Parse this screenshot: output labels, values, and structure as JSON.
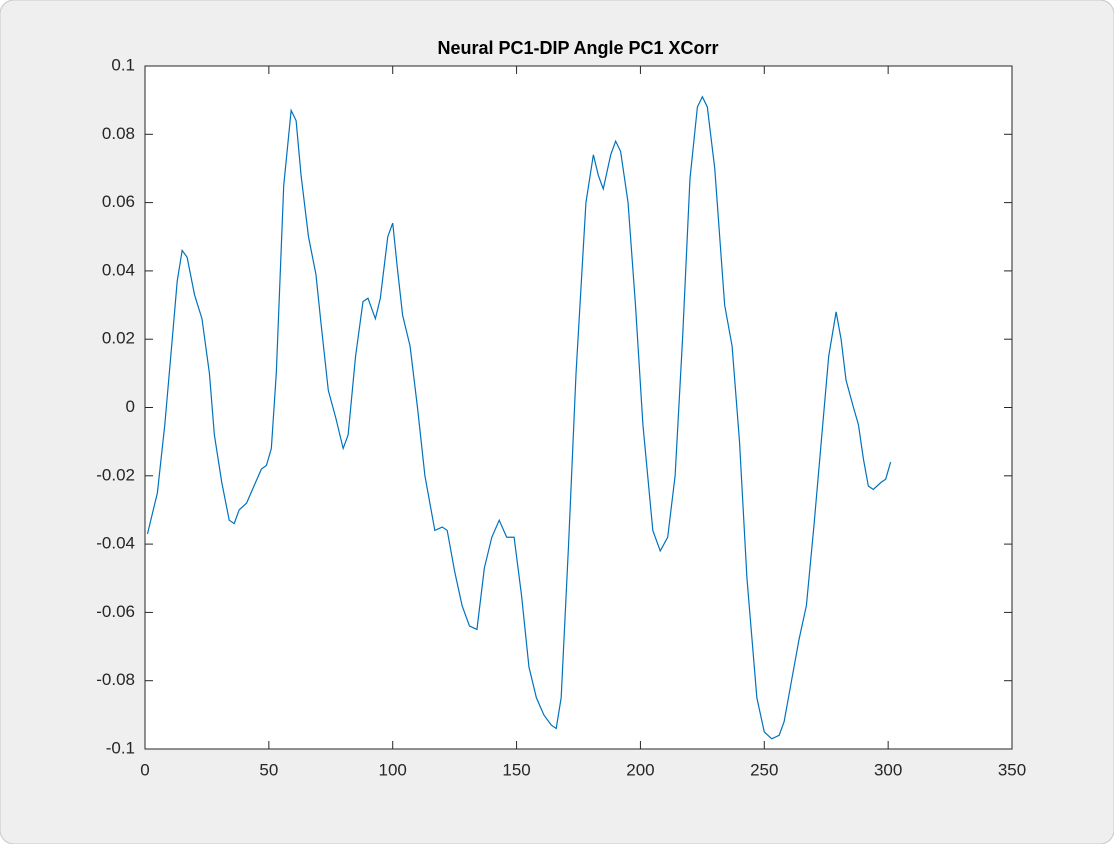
{
  "chart_data": {
    "type": "line",
    "title": "Neural PC1-DIP Angle PC1 XCorr",
    "x": [
      1,
      5,
      8,
      11,
      13,
      15,
      17,
      20,
      23,
      26,
      28,
      31,
      34,
      36,
      38,
      41,
      44,
      47,
      49,
      51,
      53,
      56,
      59,
      61,
      63,
      66,
      69,
      71,
      74,
      77,
      80,
      82,
      85,
      88,
      90,
      93,
      95,
      98,
      100,
      102,
      104,
      107,
      110,
      113,
      117,
      120,
      122,
      125,
      128,
      131,
      134,
      137,
      140,
      143,
      146,
      149,
      152,
      155,
      158,
      161,
      164,
      166,
      168,
      171,
      174,
      178,
      181,
      183,
      185,
      188,
      190,
      192,
      195,
      198,
      201,
      205,
      208,
      211,
      214,
      217,
      220,
      223,
      225,
      227,
      230,
      234,
      237,
      240,
      243,
      247,
      250,
      253,
      256,
      258,
      261,
      264,
      267,
      270,
      273,
      276,
      279,
      281,
      283,
      286,
      288,
      290,
      292,
      294,
      297,
      299,
      301
    ],
    "series": [
      {
        "color": "#0072bd",
        "values": [
          -0.037,
          -0.025,
          -0.005,
          0.02,
          0.037,
          0.046,
          0.044,
          0.033,
          0.026,
          0.01,
          -0.008,
          -0.022,
          -0.033,
          -0.034,
          -0.03,
          -0.028,
          -0.023,
          -0.018,
          -0.017,
          -0.012,
          0.01,
          0.065,
          0.087,
          0.084,
          0.068,
          0.05,
          0.039,
          0.025,
          0.005,
          -0.003,
          -0.012,
          -0.008,
          0.015,
          0.031,
          0.032,
          0.026,
          0.032,
          0.05,
          0.054,
          0.04,
          0.027,
          0.018,
          0.0,
          -0.02,
          -0.036,
          -0.035,
          -0.036,
          -0.048,
          -0.058,
          -0.064,
          -0.065,
          -0.047,
          -0.038,
          -0.033,
          -0.038,
          -0.038,
          -0.055,
          -0.076,
          -0.085,
          -0.09,
          -0.093,
          -0.094,
          -0.085,
          -0.04,
          0.01,
          0.06,
          0.074,
          0.068,
          0.064,
          0.074,
          0.078,
          0.075,
          0.06,
          0.03,
          -0.005,
          -0.036,
          -0.042,
          -0.038,
          -0.02,
          0.02,
          0.067,
          0.088,
          0.091,
          0.088,
          0.07,
          0.03,
          0.018,
          -0.01,
          -0.05,
          -0.085,
          -0.095,
          -0.097,
          -0.096,
          -0.092,
          -0.08,
          -0.068,
          -0.058,
          -0.035,
          -0.01,
          0.015,
          0.028,
          0.02,
          0.008,
          0.0,
          -0.005,
          -0.015,
          -0.023,
          -0.024,
          -0.022,
          -0.021,
          -0.016
        ]
      }
    ],
    "xlim": [
      0,
      350
    ],
    "xticks": [
      0,
      50,
      100,
      150,
      200,
      250,
      300,
      350
    ],
    "ylim": [
      -0.1,
      0.1
    ],
    "yticks": [
      -0.1,
      -0.08,
      -0.06,
      -0.04,
      -0.02,
      0,
      0.02,
      0.04,
      0.06,
      0.08,
      0.1
    ],
    "grid": false
  }
}
